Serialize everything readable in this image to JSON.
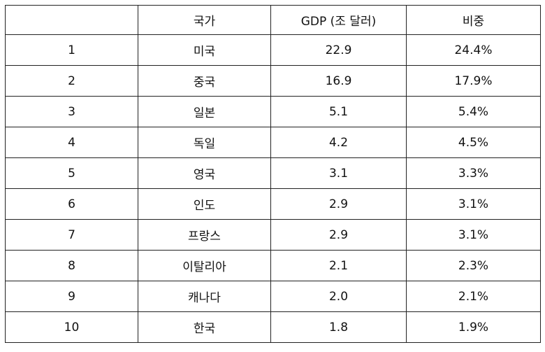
{
  "table": {
    "headers": [
      "",
      "국가",
      "GDP (조 달러)",
      "비중"
    ],
    "rows": [
      {
        "rank": "1",
        "country": "미국",
        "gdp": "22.9",
        "share": "24.4%"
      },
      {
        "rank": "2",
        "country": "중국",
        "gdp": "16.9",
        "share": "17.9%"
      },
      {
        "rank": "3",
        "country": "일본",
        "gdp": "5.1",
        "share": "5.4%"
      },
      {
        "rank": "4",
        "country": "독일",
        "gdp": "4.2",
        "share": "4.5%"
      },
      {
        "rank": "5",
        "country": "영국",
        "gdp": "3.1",
        "share": "3.3%"
      },
      {
        "rank": "6",
        "country": "인도",
        "gdp": "2.9",
        "share": "3.1%"
      },
      {
        "rank": "7",
        "country": "프랑스",
        "gdp": "2.9",
        "share": "3.1%"
      },
      {
        "rank": "8",
        "country": "이탈리아",
        "gdp": "2.1",
        "share": "2.3%"
      },
      {
        "rank": "9",
        "country": "캐나다",
        "gdp": "2.0",
        "share": "2.1%"
      },
      {
        "rank": "10",
        "country": "한국",
        "gdp": "1.8",
        "share": "1.9%"
      }
    ]
  }
}
